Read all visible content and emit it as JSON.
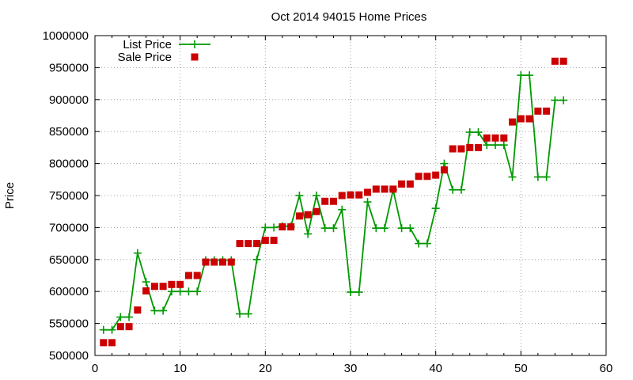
{
  "chart_data": {
    "type": "line",
    "title": "Oct 2014 94015 Home Prices",
    "xlabel": "",
    "ylabel": "Price",
    "xlim": [
      0,
      60
    ],
    "ylim": [
      500000,
      1000000
    ],
    "xticks": [
      "0",
      "10",
      "20",
      "30",
      "40",
      "50",
      "60"
    ],
    "yticks": [
      "500000",
      "550000",
      "600000",
      "650000",
      "700000",
      "750000",
      "800000",
      "850000",
      "900000",
      "950000",
      "1000000"
    ],
    "grid": true,
    "legend_position": "top-left",
    "series": [
      {
        "name": "List Price",
        "style": "line+cross",
        "color": "#009900",
        "x": [
          1,
          2,
          3,
          4,
          5,
          6,
          7,
          8,
          9,
          10,
          11,
          12,
          13,
          14,
          15,
          16,
          17,
          18,
          19,
          20,
          21,
          22,
          23,
          24,
          25,
          26,
          27,
          28,
          29,
          30,
          31,
          32,
          33,
          34,
          35,
          36,
          37,
          38,
          39,
          40,
          41,
          42,
          43,
          44,
          45,
          46,
          47,
          48,
          49,
          50,
          51,
          52,
          53,
          54,
          55
        ],
        "y": [
          540000,
          540000,
          560000,
          560000,
          660000,
          615000,
          570000,
          570000,
          600000,
          600000,
          600000,
          600000,
          649000,
          649000,
          649000,
          649000,
          565000,
          565000,
          650000,
          700000,
          700000,
          702000,
          702000,
          750000,
          690000,
          750000,
          699000,
          699000,
          728000,
          599000,
          599000,
          740000,
          699000,
          699000,
          759000,
          699000,
          699000,
          675000,
          675000,
          730000,
          800000,
          759000,
          759000,
          849000,
          849000,
          829000,
          829000,
          829000,
          779000,
          938000,
          938000,
          779000,
          779000,
          899000,
          899000
        ]
      },
      {
        "name": "Sale Price",
        "style": "square",
        "color": "#cc0000",
        "x": [
          1,
          2,
          3,
          4,
          5,
          6,
          7,
          8,
          9,
          10,
          11,
          12,
          13,
          14,
          15,
          16,
          17,
          18,
          19,
          20,
          21,
          22,
          23,
          24,
          25,
          26,
          27,
          28,
          29,
          30,
          31,
          32,
          33,
          34,
          35,
          36,
          37,
          38,
          39,
          40,
          41,
          42,
          43,
          44,
          45,
          46,
          47,
          48,
          49,
          50,
          51,
          52,
          53,
          54,
          55
        ],
        "y": [
          520000,
          520000,
          545000,
          545000,
          571000,
          601000,
          608000,
          608000,
          611000,
          611000,
          625000,
          625000,
          646000,
          646000,
          646000,
          646000,
          675000,
          675000,
          675000,
          680000,
          680000,
          701000,
          701000,
          718000,
          720000,
          725000,
          741000,
          741000,
          750000,
          751000,
          751000,
          755000,
          760000,
          760000,
          760000,
          768000,
          768000,
          780000,
          780000,
          782000,
          790000,
          823000,
          823000,
          825000,
          825000,
          840000,
          840000,
          840000,
          865000,
          870000,
          870000,
          882000,
          882000,
          960000,
          960000
        ]
      }
    ]
  }
}
